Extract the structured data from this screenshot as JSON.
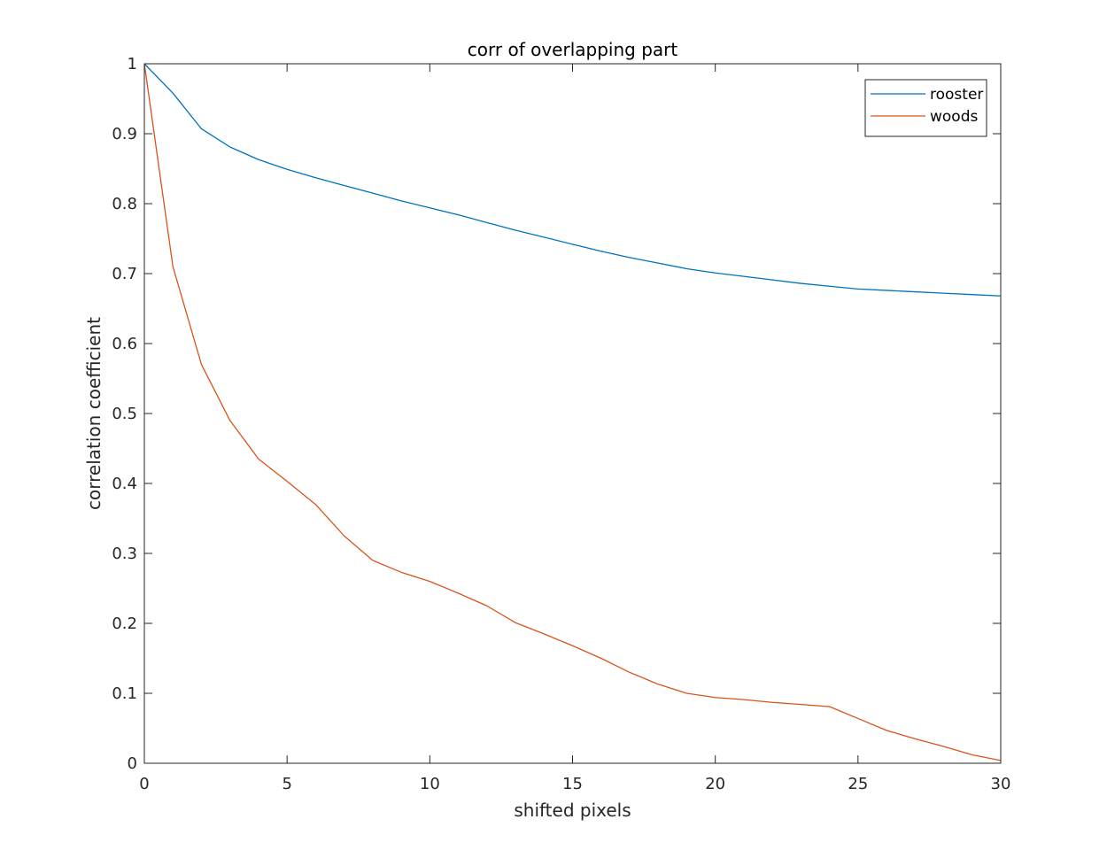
{
  "chart_data": {
    "type": "line",
    "title": "corr of overlapping part",
    "xlabel": "shifted pixels",
    "ylabel": "correlation coefficient",
    "xlim": [
      0,
      30
    ],
    "ylim": [
      0,
      1
    ],
    "xticks": [
      0,
      5,
      10,
      15,
      20,
      25,
      30
    ],
    "xtick_labels": [
      "0",
      "5",
      "10",
      "15",
      "20",
      "25",
      "30"
    ],
    "yticks": [
      0,
      0.1,
      0.2,
      0.3,
      0.4,
      0.5,
      0.6,
      0.7,
      0.8,
      0.9,
      1
    ],
    "ytick_labels": [
      "0",
      "0.1",
      "0.2",
      "0.3",
      "0.4",
      "0.5",
      "0.6",
      "0.7",
      "0.8",
      "0.9",
      "1"
    ],
    "grid": false,
    "legend_position": "top-right",
    "x": [
      0,
      1,
      2,
      3,
      4,
      5,
      6,
      7,
      8,
      9,
      10,
      11,
      12,
      13,
      14,
      15,
      16,
      17,
      18,
      19,
      20,
      21,
      22,
      23,
      24,
      25,
      26,
      27,
      28,
      29,
      30
    ],
    "series": [
      {
        "name": "rooster",
        "color": "#0072BD",
        "values": [
          1.0,
          0.958,
          0.907,
          0.881,
          0.863,
          0.849,
          0.837,
          0.826,
          0.815,
          0.804,
          0.794,
          0.784,
          0.773,
          0.762,
          0.752,
          0.742,
          0.732,
          0.723,
          0.715,
          0.707,
          0.701,
          0.696,
          0.691,
          0.686,
          0.682,
          0.678,
          0.676,
          0.674,
          0.672,
          0.67,
          0.668
        ]
      },
      {
        "name": "woods",
        "color": "#D95319",
        "values": [
          1.0,
          0.71,
          0.57,
          0.49,
          0.435,
          0.403,
          0.37,
          0.325,
          0.29,
          0.273,
          0.26,
          0.243,
          0.225,
          0.201,
          0.185,
          0.168,
          0.15,
          0.13,
          0.113,
          0.1,
          0.094,
          0.091,
          0.087,
          0.084,
          0.081,
          0.064,
          0.047,
          0.035,
          0.024,
          0.012,
          0.004
        ]
      }
    ]
  }
}
